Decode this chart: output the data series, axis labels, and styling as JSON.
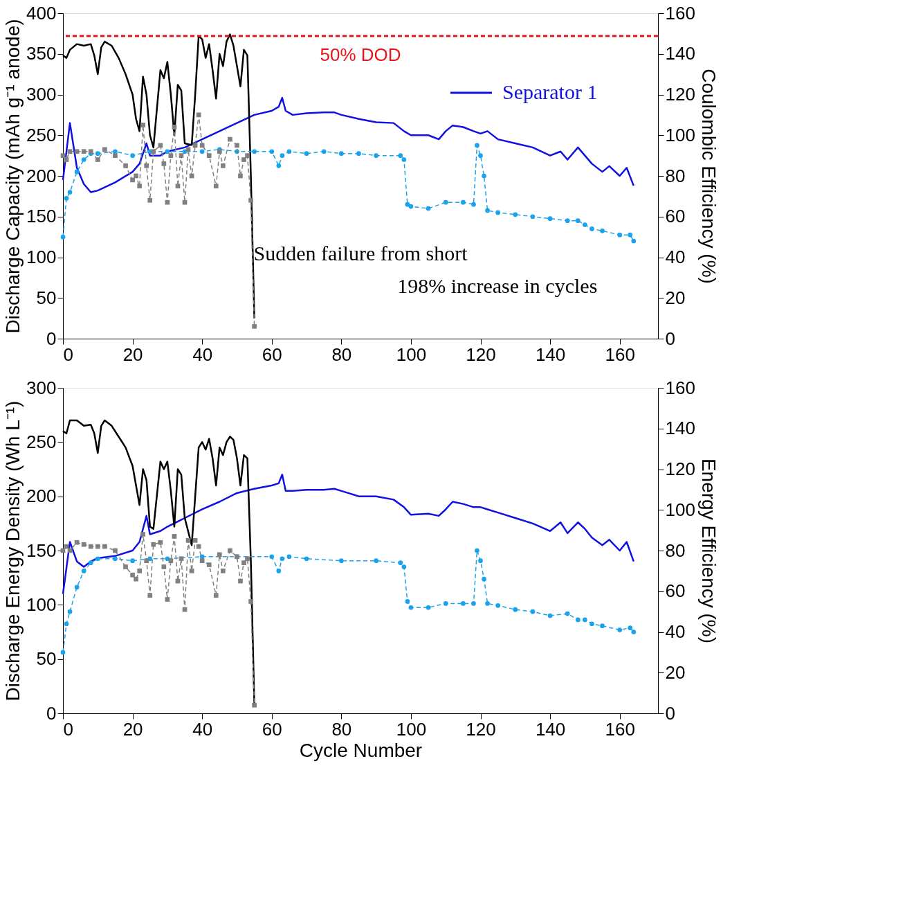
{
  "chart_data": [
    {
      "type": "line",
      "xlim": [
        0,
        171
      ],
      "xticks": [
        0,
        20,
        40,
        60,
        80,
        100,
        120,
        140,
        160
      ],
      "ylim": [
        0,
        400
      ],
      "yticks": [
        0,
        50,
        100,
        150,
        200,
        250,
        300,
        350,
        400
      ],
      "y2lim": [
        0,
        160
      ],
      "y2ticks": [
        0,
        20,
        40,
        60,
        80,
        100,
        120,
        140,
        160
      ],
      "ylabel": "Discharge Capacity (mAh g⁻¹ anode)",
      "y2label": "Coulombic Efficiency (%)",
      "grid": false,
      "legend": "top right",
      "series": [
        {
          "name": "Separator 1",
          "color": "#1010e0",
          "line_style": "solid",
          "x": [
            0,
            2,
            4,
            6,
            8,
            10,
            15,
            20,
            22,
            24,
            25,
            28,
            30,
            35,
            40,
            45,
            50,
            55,
            60,
            62,
            63,
            64,
            66,
            70,
            75,
            78,
            80,
            85,
            90,
            95,
            98,
            100,
            105,
            108,
            110,
            112,
            115,
            118,
            120,
            122,
            125,
            130,
            135,
            140,
            143,
            145,
            148,
            150,
            152,
            155,
            157,
            160,
            162,
            164
          ],
          "values": [
            195,
            265,
            210,
            190,
            180,
            182,
            192,
            205,
            215,
            240,
            225,
            225,
            230,
            235,
            245,
            255,
            265,
            275,
            280,
            285,
            296,
            280,
            275,
            277,
            278,
            278,
            275,
            270,
            266,
            265,
            255,
            250,
            250,
            245,
            255,
            262,
            260,
            255,
            252,
            255,
            245,
            240,
            235,
            225,
            230,
            220,
            235,
            225,
            215,
            205,
            212,
            200,
            210,
            188
          ]
        },
        {
          "color": "#1aa3ec",
          "axis": "y2",
          "line_style": "dashed",
          "marker": "circle",
          "x": [
            0,
            1,
            2,
            4,
            6,
            8,
            10,
            15,
            20,
            25,
            30,
            35,
            40,
            45,
            50,
            55,
            60,
            62,
            63,
            65,
            70,
            75,
            80,
            85,
            90,
            97,
            98,
            99,
            100,
            105,
            110,
            115,
            118,
            119,
            120,
            121,
            122,
            125,
            130,
            135,
            140,
            145,
            148,
            150,
            152,
            155,
            160,
            163,
            164
          ],
          "values": [
            50,
            69,
            72,
            82,
            88,
            91,
            91,
            92,
            90,
            92,
            92,
            92,
            92,
            93,
            92,
            92,
            92,
            85,
            90,
            92,
            91,
            92,
            91,
            91,
            90,
            90,
            88,
            66,
            65,
            64,
            67,
            67,
            66,
            95,
            90,
            80,
            63,
            62,
            61,
            60,
            59,
            58,
            58,
            56,
            54,
            53,
            51,
            51,
            48
          ]
        },
        {
          "color": "#000000",
          "line_style": "solid",
          "x": [
            0,
            1,
            2,
            4,
            6,
            8,
            9,
            10,
            11,
            12,
            14,
            16,
            18,
            20,
            21,
            22,
            23,
            24,
            25,
            26,
            28,
            29,
            30,
            31,
            32,
            33,
            34,
            35,
            37,
            38,
            39,
            40,
            41,
            42,
            43,
            44,
            45,
            46,
            47,
            48,
            49,
            50,
            51,
            52,
            53,
            54,
            55
          ],
          "values": [
            348,
            345,
            355,
            362,
            360,
            362,
            348,
            325,
            358,
            365,
            360,
            345,
            325,
            300,
            270,
            255,
            322,
            300,
            250,
            235,
            330,
            320,
            340,
            300,
            250,
            312,
            305,
            240,
            238,
            300,
            372,
            368,
            345,
            362,
            330,
            295,
            350,
            335,
            365,
            374,
            360,
            335,
            310,
            355,
            348,
            200,
            25
          ]
        },
        {
          "color": "#808080",
          "axis": "y2",
          "line_style": "dashed",
          "marker": "square",
          "x": [
            0,
            1,
            2,
            4,
            6,
            8,
            10,
            12,
            15,
            18,
            20,
            21,
            22,
            23,
            24,
            25,
            26,
            28,
            29,
            30,
            31,
            32,
            33,
            34,
            35,
            36,
            37,
            38,
            39,
            40,
            42,
            44,
            45,
            46,
            48,
            50,
            51,
            52,
            53,
            54,
            55
          ],
          "values": [
            90,
            88,
            92,
            92,
            92,
            92,
            88,
            93,
            90,
            85,
            78,
            80,
            75,
            105,
            85,
            68,
            92,
            95,
            86,
            67,
            90,
            104,
            75,
            90,
            67,
            93,
            80,
            95,
            110,
            95,
            90,
            75,
            92,
            85,
            98,
            95,
            80,
            88,
            90,
            68,
            6
          ]
        }
      ],
      "ref_lines": [
        {
          "axis": "y",
          "value": 372,
          "label": "50% DOD",
          "color": "#e8141a",
          "line_style": "dashed"
        }
      ],
      "annotations": [
        "Sudden failure from short",
        "198% increase in cycles"
      ]
    },
    {
      "type": "line",
      "xlim": [
        0,
        171
      ],
      "xticks": [
        0,
        20,
        40,
        60,
        80,
        100,
        120,
        140,
        160
      ],
      "ylim": [
        0,
        300
      ],
      "yticks": [
        0,
        50,
        100,
        150,
        200,
        250,
        300
      ],
      "y2lim": [
        0,
        160
      ],
      "y2ticks": [
        0,
        20,
        40,
        60,
        80,
        100,
        120,
        140,
        160
      ],
      "xlabel": "Cycle Number",
      "ylabel": "Discharge Energy Density (Wh L⁻¹)",
      "y2label": "Energy Efficiency (%)",
      "grid": false,
      "series": [
        {
          "color": "#1010e0",
          "line_style": "solid",
          "x": [
            0,
            2,
            4,
            6,
            8,
            10,
            15,
            20,
            22,
            24,
            25,
            28,
            30,
            35,
            40,
            45,
            50,
            55,
            60,
            62,
            63,
            64,
            66,
            70,
            75,
            78,
            80,
            85,
            90,
            95,
            98,
            100,
            105,
            108,
            110,
            112,
            115,
            118,
            120,
            122,
            125,
            130,
            135,
            140,
            143,
            145,
            148,
            150,
            152,
            155,
            157,
            160,
            162,
            164
          ],
          "values": [
            110,
            158,
            140,
            135,
            140,
            143,
            145,
            150,
            158,
            182,
            165,
            168,
            172,
            180,
            188,
            195,
            203,
            207,
            210,
            212,
            220,
            205,
            205,
            206,
            206,
            207,
            205,
            200,
            200,
            197,
            190,
            183,
            184,
            182,
            188,
            195,
            193,
            190,
            190,
            188,
            185,
            180,
            175,
            168,
            176,
            166,
            176,
            170,
            162,
            155,
            160,
            150,
            158,
            140
          ]
        },
        {
          "color": "#1aa3ec",
          "axis": "y2",
          "line_style": "dashed",
          "marker": "circle",
          "x": [
            0,
            1,
            2,
            4,
            6,
            8,
            10,
            15,
            20,
            25,
            30,
            40,
            50,
            60,
            62,
            63,
            65,
            70,
            80,
            90,
            97,
            98,
            99,
            100,
            105,
            110,
            115,
            118,
            119,
            120,
            121,
            122,
            125,
            130,
            135,
            140,
            145,
            148,
            150,
            152,
            155,
            160,
            163,
            164
          ],
          "values": [
            30,
            44,
            50,
            62,
            70,
            74,
            76,
            76,
            75,
            76,
            76,
            77,
            77,
            77,
            70,
            76,
            77,
            76,
            75,
            75,
            74,
            72,
            55,
            52,
            52,
            54,
            54,
            54,
            80,
            75,
            66,
            54,
            53,
            51,
            50,
            48,
            49,
            46,
            46,
            44,
            43,
            41,
            42,
            40
          ]
        },
        {
          "color": "#000000",
          "line_style": "solid",
          "x": [
            0,
            1,
            2,
            4,
            6,
            8,
            9,
            10,
            11,
            12,
            14,
            16,
            18,
            20,
            21,
            22,
            23,
            24,
            25,
            26,
            28,
            29,
            30,
            31,
            32,
            33,
            34,
            35,
            37,
            38,
            39,
            40,
            41,
            42,
            43,
            44,
            45,
            46,
            47,
            48,
            49,
            50,
            51,
            52,
            53,
            54,
            55
          ],
          "values": [
            260,
            258,
            270,
            270,
            265,
            266,
            258,
            240,
            265,
            270,
            265,
            255,
            245,
            228,
            210,
            192,
            225,
            215,
            172,
            170,
            232,
            225,
            232,
            205,
            172,
            225,
            220,
            180,
            155,
            200,
            245,
            250,
            243,
            253,
            235,
            210,
            245,
            238,
            250,
            255,
            252,
            235,
            210,
            238,
            235,
            140,
            8
          ]
        },
        {
          "color": "#808080",
          "axis": "y2",
          "line_style": "dashed",
          "marker": "square",
          "x": [
            0,
            1,
            2,
            4,
            6,
            8,
            10,
            12,
            15,
            18,
            20,
            21,
            22,
            23,
            24,
            25,
            26,
            28,
            29,
            30,
            31,
            32,
            33,
            34,
            35,
            36,
            37,
            38,
            39,
            40,
            42,
            44,
            45,
            46,
            48,
            50,
            51,
            52,
            53,
            54,
            55
          ],
          "values": [
            80,
            82,
            80,
            84,
            83,
            82,
            82,
            82,
            80,
            72,
            68,
            66,
            70,
            88,
            75,
            58,
            83,
            84,
            72,
            56,
            75,
            87,
            65,
            76,
            51,
            85,
            70,
            85,
            82,
            75,
            73,
            58,
            78,
            70,
            80,
            77,
            65,
            74,
            76,
            55,
            4
          ]
        }
      ]
    }
  ]
}
